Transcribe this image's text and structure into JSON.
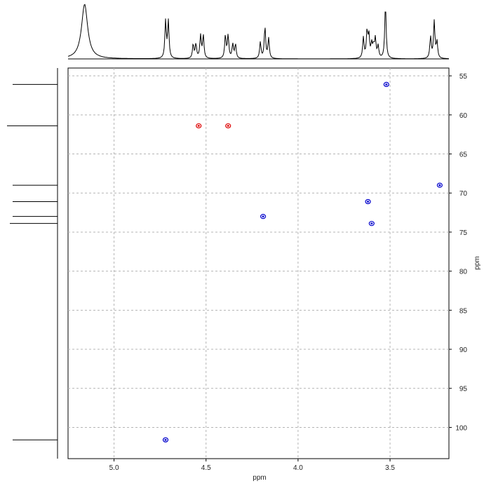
{
  "chart_data": {
    "type": "scatter",
    "title": "",
    "xlabel": "ppm",
    "ylabel": "ppm",
    "x_reversed": true,
    "y_reversed": true,
    "xlim": [
      5.25,
      3.18
    ],
    "ylim": [
      54.0,
      104.0
    ],
    "x_ticks": [
      5.0,
      4.5,
      4.0,
      3.5
    ],
    "x_tick_labels": [
      "5.0",
      "4.5",
      "4.0",
      "3.5"
    ],
    "y_ticks": [
      55,
      60,
      65,
      70,
      75,
      80,
      85,
      90,
      95,
      100
    ],
    "y_tick_labels": [
      "55",
      "60",
      "65",
      "70",
      "75",
      "80",
      "85",
      "90",
      "95",
      "100"
    ],
    "grid": true,
    "series": [
      {
        "color": "#0000cc",
        "points": [
          {
            "x": 3.52,
            "y": 56.1
          },
          {
            "x": 3.23,
            "y": 69.0
          },
          {
            "x": 3.62,
            "y": 71.1
          },
          {
            "x": 4.19,
            "y": 73.0
          },
          {
            "x": 3.6,
            "y": 73.9
          },
          {
            "x": 4.72,
            "y": 101.6
          }
        ]
      },
      {
        "color": "#dd0000",
        "points": [
          {
            "x": 4.54,
            "y": 61.4
          },
          {
            "x": 4.38,
            "y": 61.4
          }
        ]
      }
    ],
    "projection_1h_peaks": [
      {
        "ppm": 5.16,
        "height": 1.0
      },
      {
        "ppm": 4.72,
        "height": 0.68
      },
      {
        "ppm": 4.705,
        "height": 0.68
      },
      {
        "ppm": 4.57,
        "height": 0.26
      },
      {
        "ppm": 4.555,
        "height": 0.26
      },
      {
        "ppm": 4.53,
        "height": 0.42
      },
      {
        "ppm": 4.515,
        "height": 0.42
      },
      {
        "ppm": 4.395,
        "height": 0.42
      },
      {
        "ppm": 4.38,
        "height": 0.42
      },
      {
        "ppm": 4.355,
        "height": 0.26
      },
      {
        "ppm": 4.34,
        "height": 0.26
      },
      {
        "ppm": 4.205,
        "height": 0.3
      },
      {
        "ppm": 4.18,
        "height": 0.58
      },
      {
        "ppm": 4.16,
        "height": 0.37
      },
      {
        "ppm": 3.645,
        "height": 0.38
      },
      {
        "ppm": 3.625,
        "height": 0.48
      },
      {
        "ppm": 3.615,
        "height": 0.4
      },
      {
        "ppm": 3.6,
        "height": 0.25
      },
      {
        "ppm": 3.59,
        "height": 0.2
      },
      {
        "ppm": 3.58,
        "height": 0.35
      },
      {
        "ppm": 3.565,
        "height": 0.22
      },
      {
        "ppm": 3.525,
        "height": 1.0
      },
      {
        "ppm": 3.28,
        "height": 0.4
      },
      {
        "ppm": 3.26,
        "height": 0.68
      },
      {
        "ppm": 3.245,
        "height": 0.3
      }
    ],
    "projection_13c_peaks": [
      {
        "ppm": 56.1,
        "height": 0.8
      },
      {
        "ppm": 61.4,
        "height": 0.9
      },
      {
        "ppm": 69.0,
        "height": 0.8
      },
      {
        "ppm": 71.1,
        "height": 0.8
      },
      {
        "ppm": 73.0,
        "height": 0.8
      },
      {
        "ppm": 73.9,
        "height": 0.85
      },
      {
        "ppm": 101.6,
        "height": 0.8
      }
    ]
  }
}
